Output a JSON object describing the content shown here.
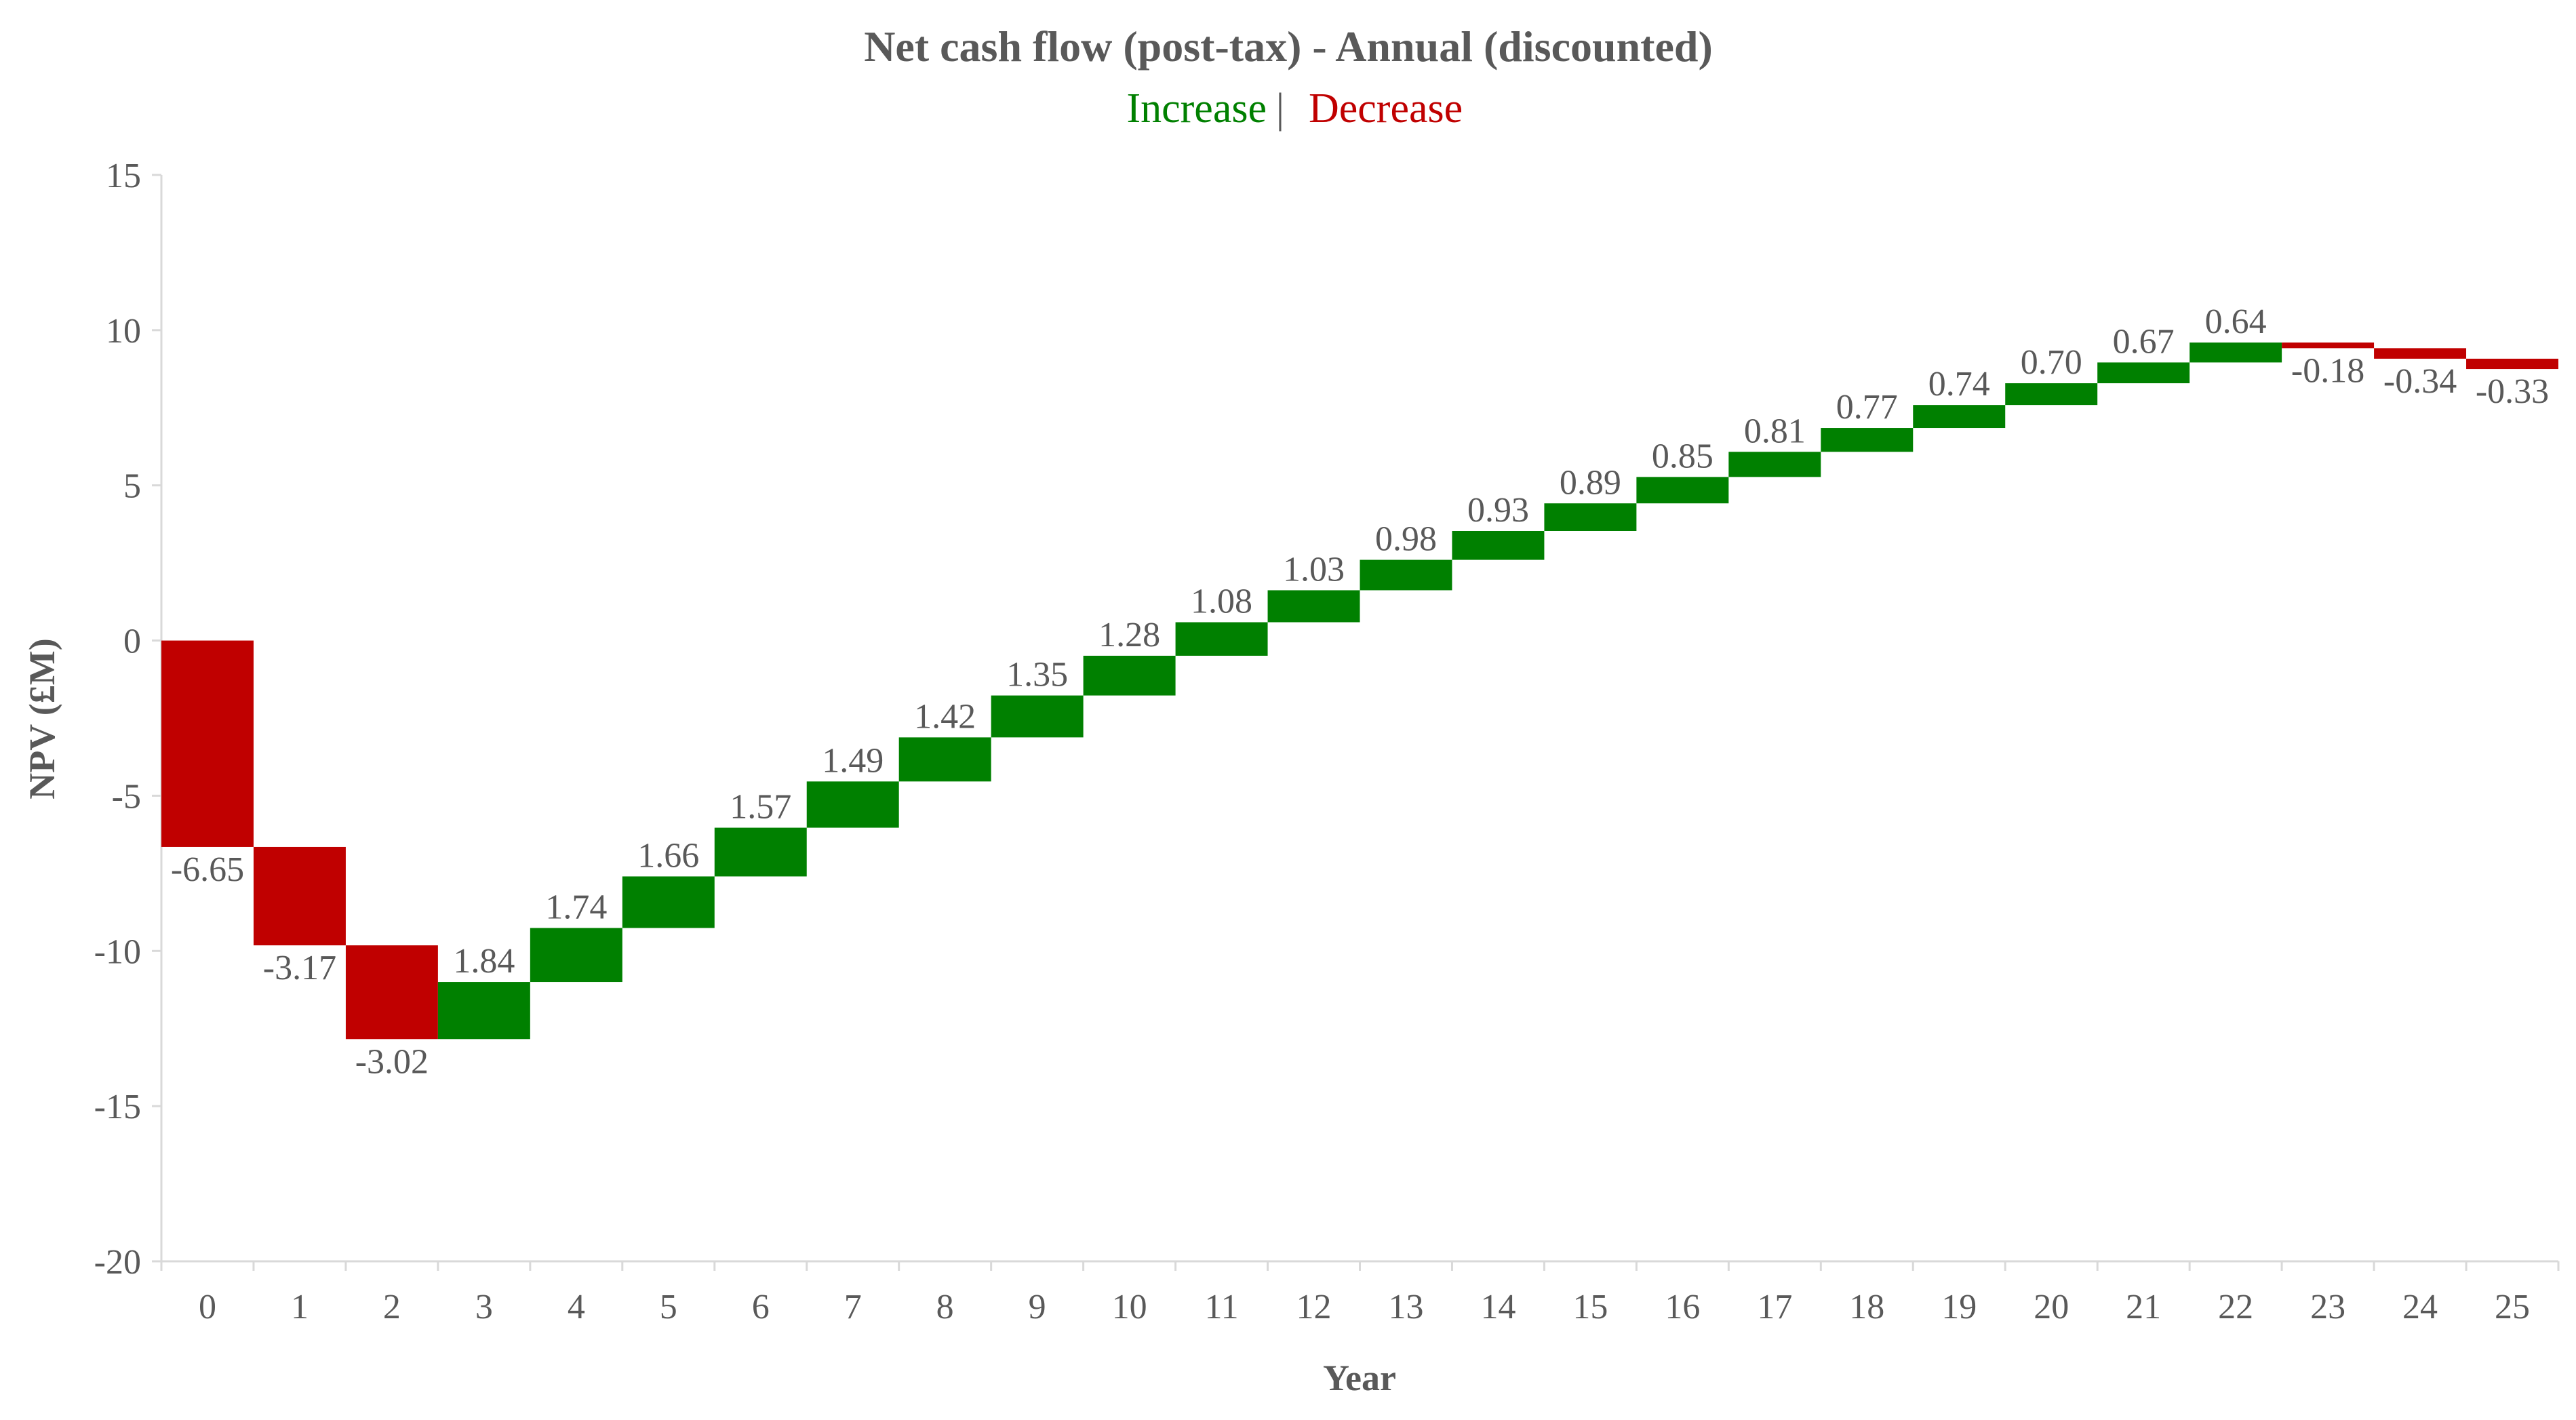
{
  "chart_data": {
    "type": "waterfall",
    "title": "Net cash flow (post-tax) - Annual (discounted)",
    "legend": [
      {
        "label": "Increase",
        "color": "#008000"
      },
      {
        "label": "Decrease",
        "color": "#C00000"
      }
    ],
    "legend_separator": "|",
    "legend_placement": "top-center",
    "xlabel": "Year",
    "ylabel": "NPV (£M)",
    "categories": [
      "0",
      "1",
      "2",
      "3",
      "4",
      "5",
      "6",
      "7",
      "8",
      "9",
      "10",
      "11",
      "12",
      "13",
      "14",
      "15",
      "16",
      "17",
      "18",
      "19",
      "20",
      "21",
      "22",
      "23",
      "24",
      "25"
    ],
    "values": [
      -6.65,
      -3.17,
      -3.02,
      1.84,
      1.74,
      1.66,
      1.57,
      1.49,
      1.42,
      1.35,
      1.28,
      1.08,
      1.03,
      0.98,
      0.93,
      0.89,
      0.85,
      0.81,
      0.77,
      0.74,
      0.7,
      0.67,
      0.64,
      -0.18,
      -0.34,
      -0.33
    ],
    "data_labels": [
      "-6.65",
      "-3.17",
      "-3.02",
      "1.84",
      "1.74",
      "1.66",
      "1.57",
      "1.49",
      "1.42",
      "1.35",
      "1.28",
      "1.08",
      "1.03",
      "0.98",
      "0.93",
      "0.89",
      "0.85",
      "0.81",
      "0.77",
      "0.74",
      "0.70",
      "0.67",
      "0.64",
      "-0.18",
      "-0.34",
      "-0.33"
    ],
    "ylim": [
      -20,
      15
    ],
    "yticks": [
      15,
      10,
      5,
      0,
      -5,
      -10,
      -15,
      -20
    ],
    "ytick_labels": [
      "15",
      "10",
      "5",
      "0",
      "-5",
      "-10",
      "-15",
      "-20"
    ],
    "grid": false,
    "colors": {
      "increase": "#008000",
      "decrease": "#C00000",
      "text": "#595959",
      "axis": "#D9D9D9"
    }
  }
}
